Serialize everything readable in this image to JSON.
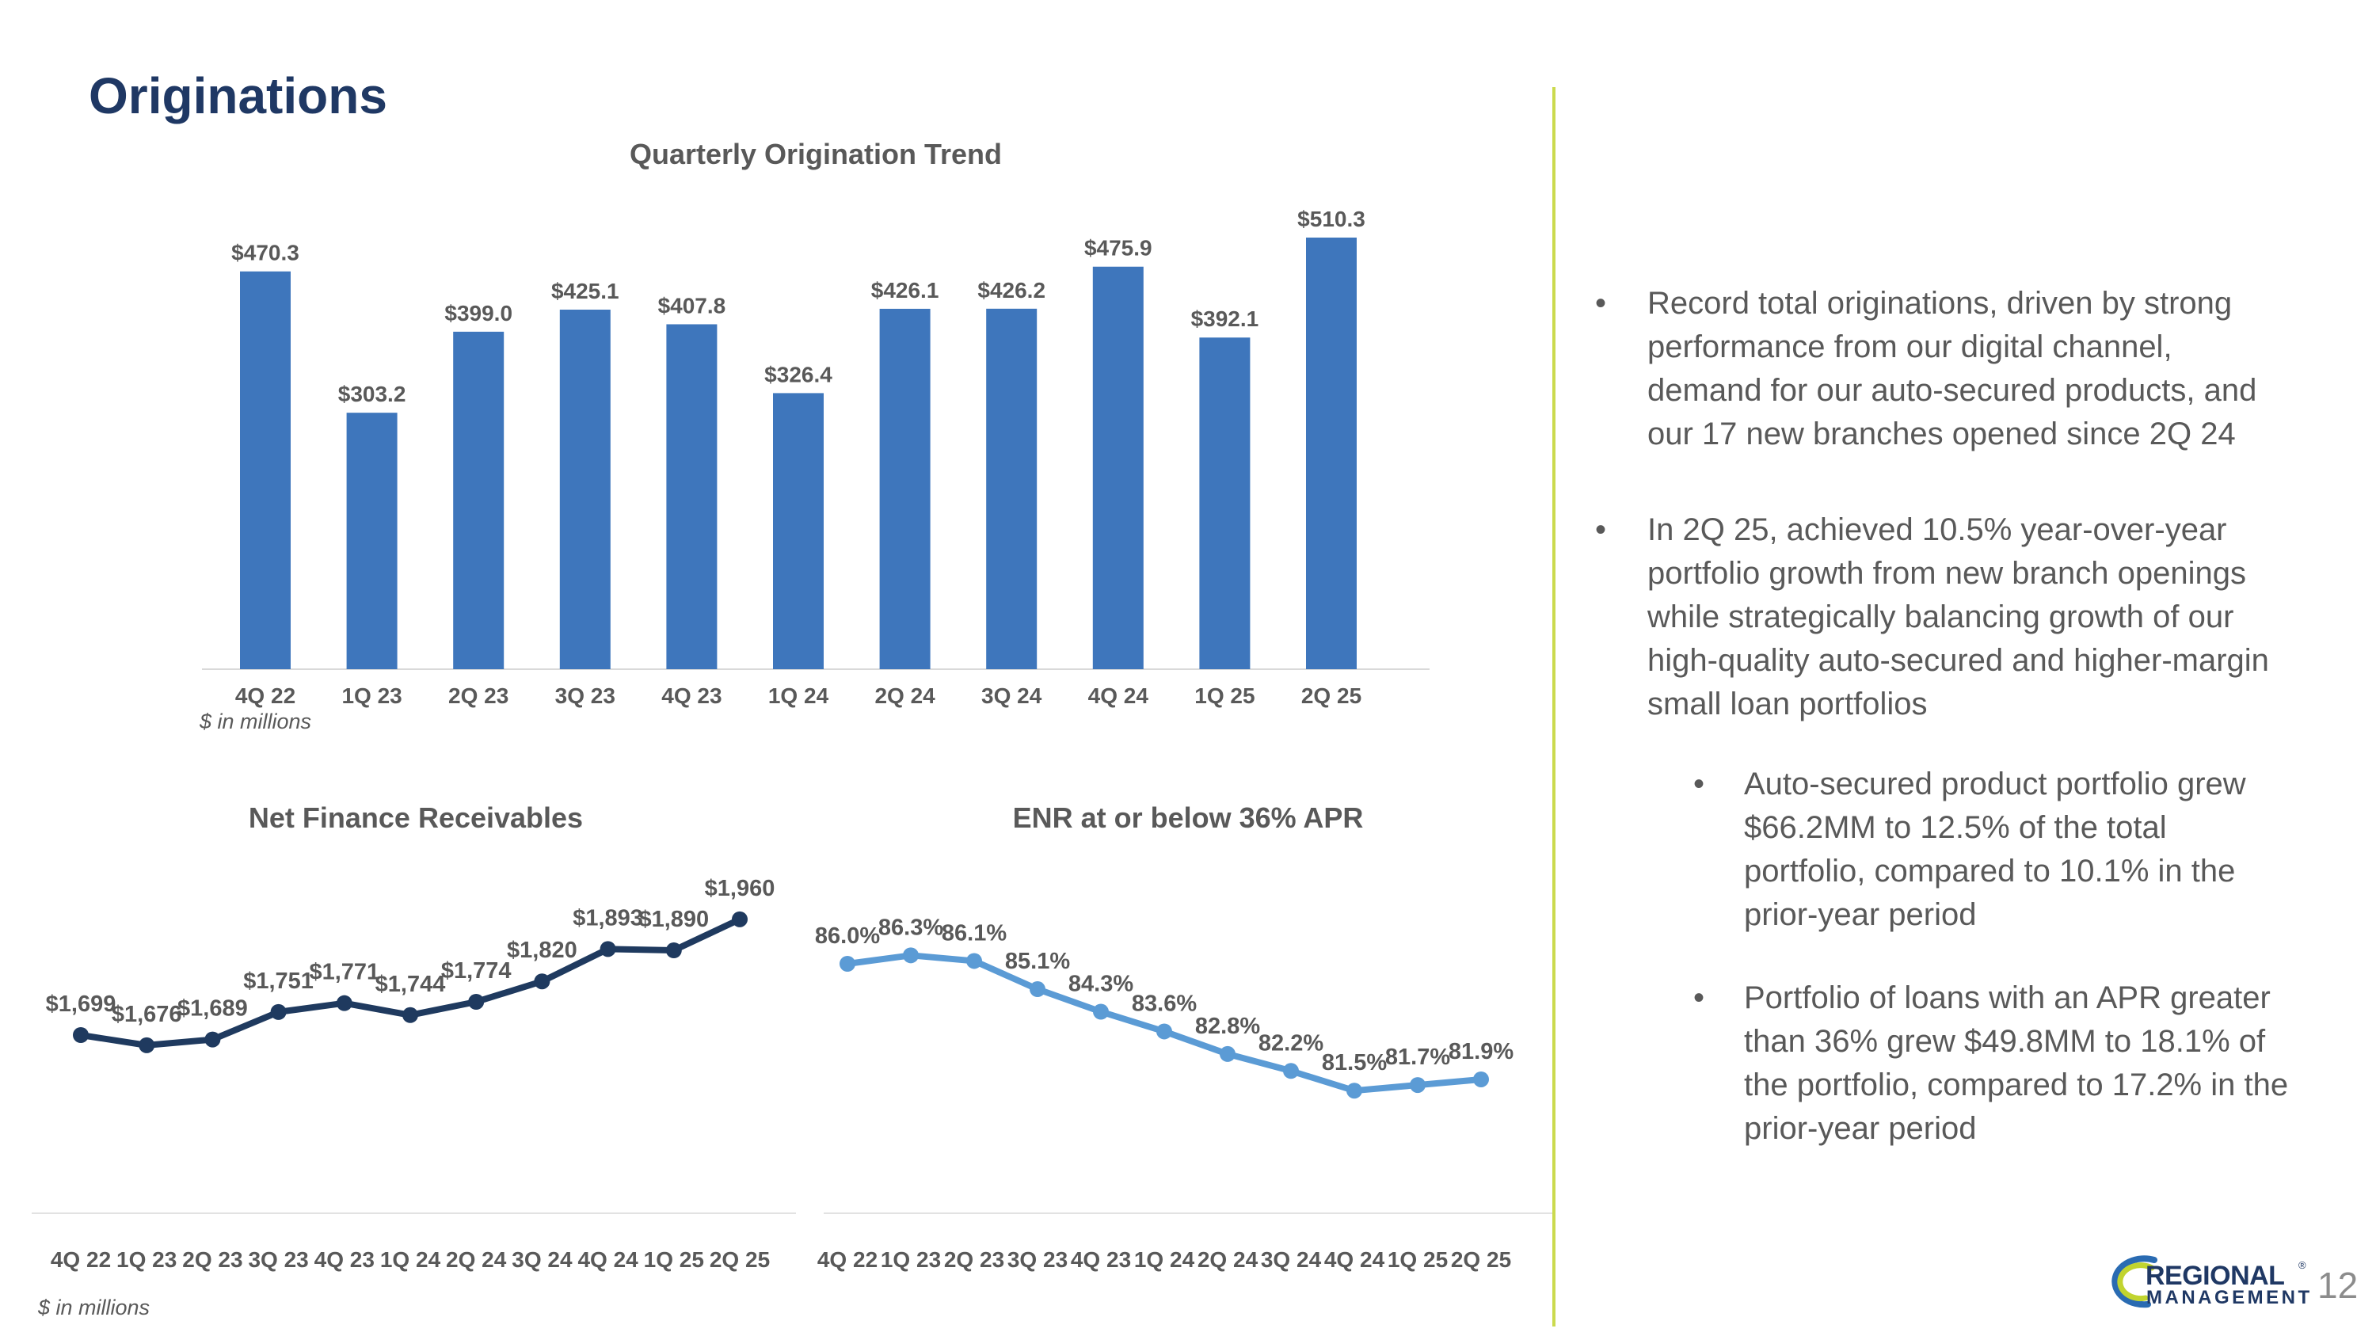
{
  "title": "Originations",
  "page_number": "12",
  "colors": {
    "title_navy": "#1F3864",
    "bar_blue": "#3E76BC",
    "dark_line": "#1F3A5F",
    "light_line": "#5B9BD5",
    "text_gray": "#595959",
    "axis_gray": "#D9D9D9",
    "divider_green": "#CBDA4E",
    "logo_navy": "#1F3864",
    "logo_blue": "#2A6BB2",
    "logo_green": "#C1D42F"
  },
  "chart_data": [
    {
      "id": "originations",
      "type": "bar",
      "title": "Quarterly Origination Trend",
      "note": "$ in millions",
      "categories": [
        "4Q 22",
        "1Q 23",
        "2Q 23",
        "3Q 23",
        "4Q 23",
        "1Q 24",
        "2Q 24",
        "3Q 24",
        "4Q 24",
        "1Q 25",
        "2Q 25"
      ],
      "values": [
        470.3,
        303.2,
        399.0,
        425.1,
        407.8,
        326.4,
        426.1,
        426.2,
        475.9,
        392.1,
        510.3
      ],
      "labels": [
        "$470.3",
        "$303.2",
        "$399.0",
        "$425.1",
        "$407.8",
        "$326.4",
        "$426.1",
        "$426.2",
        "$475.9",
        "$392.1",
        "$510.3"
      ],
      "ylim": [
        0,
        560
      ],
      "grid": false,
      "legend": "none"
    },
    {
      "id": "net-finance-receivables",
      "type": "line",
      "title": "Net Finance Receivables",
      "note": "$ in millions",
      "categories": [
        "4Q 22",
        "1Q 23",
        "2Q 23",
        "3Q 23",
        "4Q 23",
        "1Q 24",
        "2Q 24",
        "3Q 24",
        "4Q 24",
        "1Q 25",
        "2Q 25"
      ],
      "values": [
        1699,
        1676,
        1689,
        1751,
        1771,
        1744,
        1774,
        1820,
        1893,
        1890,
        1960
      ],
      "labels": [
        "$1,699",
        "$1,676",
        "$1,689",
        "$1,751",
        "$1,771",
        "$1,744",
        "$1,774",
        "$1,820",
        "$1,893",
        "$1,890",
        "$1,960"
      ],
      "grid": false,
      "legend": "none"
    },
    {
      "id": "enr-at-or-below-36-apr",
      "type": "line",
      "title": "ENR at or below 36% APR",
      "note": "",
      "categories": [
        "4Q 22",
        "1Q 23",
        "2Q 23",
        "3Q 23",
        "4Q 23",
        "1Q 24",
        "2Q 24",
        "3Q 24",
        "4Q 24",
        "1Q 25",
        "2Q 25"
      ],
      "values": [
        86.0,
        86.3,
        86.1,
        85.1,
        84.3,
        83.6,
        82.8,
        82.2,
        81.5,
        81.7,
        81.9
      ],
      "labels": [
        "86.0%",
        "86.3%",
        "86.1%",
        "85.1%",
        "84.3%",
        "83.6%",
        "82.8%",
        "82.2%",
        "81.5%",
        "81.7%",
        "81.9%"
      ],
      "grid": false,
      "legend": "none"
    }
  ],
  "bullets": {
    "marker": "•",
    "items": [
      {
        "level": 1,
        "text": "Record total originations, driven by strong\nperformance from our digital channel,\ndemand for our auto-secured products, and\nour 17 new branches opened since 2Q 24"
      },
      {
        "level": 1,
        "text": "In 2Q 25, achieved 10.5% year-over-year\nportfolio growth from new branch openings\nwhile strategically balancing growth of our\nhigh-quality auto-secured and higher-margin\nsmall loan portfolios"
      },
      {
        "level": 2,
        "text": "Auto-secured product portfolio grew\n$66.2MM to 12.5% of the total\nportfolio, compared to 10.1% in the\nprior-year period"
      },
      {
        "level": 2,
        "text": "Portfolio of loans with an APR greater\nthan 36% grew $49.8MM to 18.1% of\nthe portfolio, compared to 17.2% in the\nprior-year period"
      }
    ]
  },
  "logo": {
    "line1": "REGIONAL",
    "line2": "MANAGEMENT",
    "registered": "®"
  }
}
